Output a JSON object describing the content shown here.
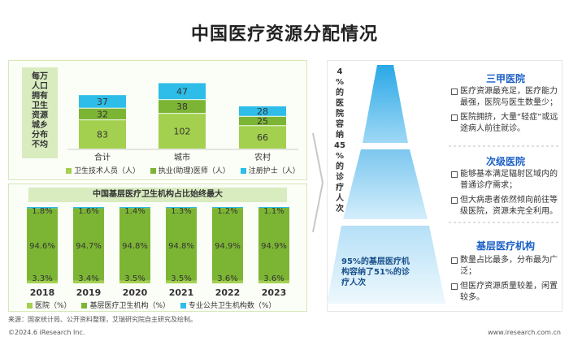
{
  "title": "中国医疗资源分配情况",
  "left_top": {
    "side_label": "每万\n人口\n拥有\n卫生\n资源\n城乡\n分布\n不均",
    "legend": [
      {
        "label": "卫生技术人员（人）",
        "color": "#a3d04e"
      },
      {
        "label": "执业(助理)医师（人）",
        "color": "#7cb534"
      },
      {
        "label": "注册护士（人）",
        "color": "#2dbde8"
      }
    ]
  },
  "left_bottom": {
    "subtitle": "中国基层医疗卫生机构占比始终最大",
    "legend": [
      {
        "label": "医院（%）",
        "color": "#a3d04e"
      },
      {
        "label": "基层医疗卫生机构（%）",
        "color": "#7cb534"
      },
      {
        "label": "专业公共卫生机构数（%）",
        "color": "#2dbde8"
      }
    ]
  },
  "chart_data": [
    {
      "type": "bar",
      "stacked": true,
      "categories": [
        "合计",
        "城市",
        "农村"
      ],
      "series": [
        {
          "name": "卫生技术人员（人）",
          "values": [
            83,
            102,
            66
          ]
        },
        {
          "name": "执业(助理)医师（人）",
          "values": [
            32,
            38,
            25
          ]
        },
        {
          "name": "注册护士（人）",
          "values": [
            37,
            47,
            28
          ]
        }
      ],
      "grid": false
    },
    {
      "type": "bar",
      "stacked": true,
      "percent": true,
      "title": "中国基层医疗卫生机构占比始终最大",
      "categories": [
        "2018",
        "2019",
        "2020",
        "2021",
        "2022",
        "2023"
      ],
      "series": [
        {
          "name": "医院（%）",
          "values": [
            3.3,
            3.4,
            3.5,
            3.5,
            3.6,
            3.6
          ]
        },
        {
          "name": "基层医疗卫生机构（%）",
          "values": [
            94.6,
            94.7,
            94.8,
            94.8,
            94.9,
            94.9
          ]
        },
        {
          "name": "专业公共卫生机构数（%）",
          "values": [
            1.8,
            1.6,
            1.4,
            1.3,
            1.2,
            1.1
          ]
        }
      ],
      "grid": false
    }
  ],
  "pyramid": {
    "vertical_note": "4\n%\n的\n医\n院\n容\n纳\n45\n%\n的\n诊\n疗\n人\n次",
    "tiers": [
      {
        "head": "三甲医院",
        "items": [
          "医疗资源最充足，医疗能力最强，医院与医生数量少；",
          "医院拥挤，大量“轻症”或远途病人前往就诊。"
        ]
      },
      {
        "head": "次级医院",
        "items": [
          "能够基本满足辐射区域内的普通诊疗需求；",
          "但大病患者依然倾向前往等级医院，资源未完全利用。"
        ]
      },
      {
        "head": "基层医疗机构",
        "items": [
          "数量占比最多，分布最为广泛；",
          "但医疗资源质量较差，闲置较多。"
        ]
      }
    ],
    "base_note": "95%的基层医疗机构容纳了51%的诊疗人次"
  },
  "footer": {
    "source": "来源：国家统计局、公开资料整理，艾瑞研究院自主研究及绘制。",
    "copyright": "©2024.6 iResearch Inc.",
    "website": "www.iresearch.com.cn"
  }
}
